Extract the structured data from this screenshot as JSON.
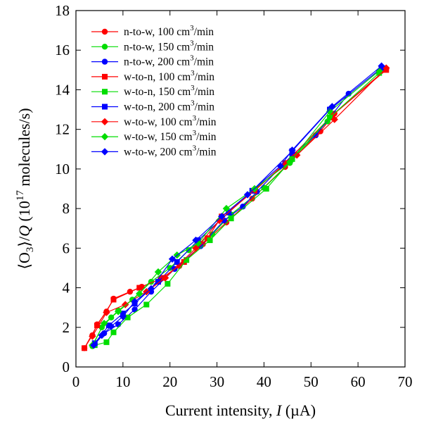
{
  "chart_data": {
    "type": "scatter",
    "title": "",
    "xlabel": "Current intensity, I (µA)",
    "xlabel_parts": {
      "prefix": "Current intensity, ",
      "var": "I",
      "unit": " (µA)"
    },
    "ylabel": "⟨O3⟩/Q (10^17 molecules/s)",
    "ylabel_parts": {
      "open": "⟨O",
      "sub": "3",
      "close": "⟩/",
      "var": "Q",
      "unitA": " (10",
      "sup": "17",
      "unitB": " molecules/s)"
    },
    "xlim": [
      0,
      70
    ],
    "ylim": [
      0,
      18
    ],
    "xticks": [
      0,
      10,
      20,
      30,
      40,
      50,
      60,
      70
    ],
    "yticks": [
      0,
      2,
      4,
      6,
      8,
      10,
      12,
      14,
      16,
      18
    ],
    "grid": false,
    "legend_position": "top-left",
    "colors": {
      "red": "#ff0000",
      "green": "#00dd00",
      "blue": "#0000ff"
    },
    "series": [
      {
        "name": "n-to-w, 100 cm3/min",
        "legend": {
          "main": "n-to-w, 100 cm",
          "sup": "3",
          "tail": "/min"
        },
        "color": "#ff0000",
        "marker": "circle",
        "x": [
          1.8,
          3.5,
          4.5,
          6.5,
          8.0,
          11.5,
          14.0,
          18.0,
          22.0,
          27.0,
          32.0,
          37.5,
          44.5,
          52.0,
          55.0,
          66.0
        ],
        "y": [
          0.95,
          1.6,
          2.15,
          2.8,
          3.45,
          3.8,
          4.05,
          4.45,
          5.1,
          6.2,
          7.3,
          8.5,
          10.1,
          11.9,
          12.8,
          15.05
        ]
      },
      {
        "name": "n-to-w, 150 cm3/min",
        "legend": {
          "main": "n-to-w, 150 cm",
          "sup": "3",
          "tail": "/min"
        },
        "color": "#00dd00",
        "marker": "circle",
        "x": [
          3.5,
          5.5,
          7.5,
          9.0,
          12.0,
          16.0,
          20.0,
          24.0,
          29.0,
          33.0,
          40.0,
          45.5,
          53.5
        ],
        "y": [
          1.05,
          2.0,
          2.5,
          2.85,
          3.4,
          4.3,
          5.0,
          5.9,
          6.7,
          7.7,
          9.05,
          10.3,
          12.4
        ]
      },
      {
        "name": "n-to-w, 200 cm3/min",
        "legend": {
          "main": "n-to-w, 200 cm",
          "sup": "3",
          "tail": "/min"
        },
        "color": "#0000ff",
        "marker": "circle",
        "x": [
          4.0,
          6.0,
          9.0,
          12.5,
          16.0,
          21.0,
          26.5,
          31.5,
          35.5,
          38.5,
          46.0,
          51.0,
          58.0
        ],
        "y": [
          1.15,
          1.7,
          2.15,
          2.9,
          3.8,
          4.95,
          6.1,
          7.4,
          8.1,
          8.85,
          10.7,
          11.7,
          13.8
        ]
      },
      {
        "name": "w-to-n, 100 cm3/min",
        "legend": {
          "main": "w-to-n, 100 cm",
          "sup": "3",
          "tail": "/min"
        },
        "color": "#ff0000",
        "marker": "square",
        "x": [
          1.8,
          4.5,
          8.0,
          13.5,
          18.5,
          23.0,
          28.0,
          31.0,
          38.0,
          44.5,
          54.5,
          66.0
        ],
        "y": [
          0.95,
          2.1,
          3.4,
          4.0,
          4.5,
          5.3,
          6.5,
          7.6,
          8.9,
          10.3,
          12.7,
          15.0
        ]
      },
      {
        "name": "w-to-n, 150 cm3/min",
        "legend": {
          "main": "w-to-n, 150 cm",
          "sup": "3",
          "tail": "/min"
        },
        "color": "#00dd00",
        "marker": "square",
        "x": [
          4.0,
          6.5,
          8.0,
          11.0,
          15.0,
          19.5,
          23.5,
          28.5,
          33.0,
          40.5,
          46.0,
          54.0,
          64.5
        ],
        "y": [
          1.1,
          1.25,
          1.75,
          2.5,
          3.15,
          4.2,
          5.4,
          6.4,
          7.5,
          9.0,
          10.5,
          12.6,
          14.85
        ]
      },
      {
        "name": "w-to-n, 200 cm3/min",
        "legend": {
          "main": "w-to-n, 200 cm",
          "sup": "3",
          "tail": "/min"
        },
        "color": "#0000ff",
        "marker": "square",
        "x": [
          4.0,
          7.0,
          10.0,
          12.5,
          17.5,
          21.5,
          26.0,
          32.5,
          37.5,
          46.0,
          54.0,
          65.0
        ],
        "y": [
          1.2,
          2.1,
          2.7,
          3.2,
          4.3,
          5.3,
          6.4,
          7.8,
          8.9,
          10.9,
          13.0,
          15.1
        ]
      },
      {
        "name": "w-to-w, 100 cm3/min",
        "legend": {
          "main": "w-to-w, 100 cm",
          "sup": "3",
          "tail": "/min"
        },
        "color": "#ff0000",
        "marker": "diamond",
        "x": [
          3.5,
          6.5,
          10.5,
          15.0,
          19.0,
          25.5,
          30.5,
          38.0,
          47.0,
          55.0,
          66.0
        ],
        "y": [
          1.55,
          2.75,
          3.15,
          3.8,
          4.5,
          6.0,
          7.4,
          8.95,
          10.7,
          12.5,
          15.1
        ]
      },
      {
        "name": "w-to-w, 150 cm3/min",
        "legend": {
          "main": "w-to-w, 150 cm",
          "sup": "3",
          "tail": "/min"
        },
        "color": "#00dd00",
        "marker": "diamond",
        "x": [
          3.5,
          6.0,
          9.0,
          13.5,
          17.5,
          21.5,
          26.0,
          32.0,
          38.0,
          45.5,
          54.0,
          64.5
        ],
        "y": [
          1.1,
          2.2,
          2.8,
          3.7,
          4.8,
          5.65,
          6.25,
          8.0,
          9.0,
          10.35,
          12.9,
          14.95
        ]
      },
      {
        "name": "w-to-w, 200 cm3/min",
        "legend": {
          "main": "w-to-w, 200 cm",
          "sup": "3",
          "tail": "/min"
        },
        "color": "#0000ff",
        "marker": "diamond",
        "x": [
          3.8,
          5.5,
          7.5,
          10.0,
          12.5,
          16.0,
          20.5,
          25.5,
          31.0,
          36.5,
          43.5,
          46.0,
          54.5,
          65.0
        ],
        "y": [
          1.1,
          1.6,
          2.05,
          2.55,
          3.3,
          3.95,
          5.45,
          6.4,
          7.6,
          8.7,
          10.15,
          10.95,
          13.15,
          15.2
        ]
      }
    ]
  }
}
